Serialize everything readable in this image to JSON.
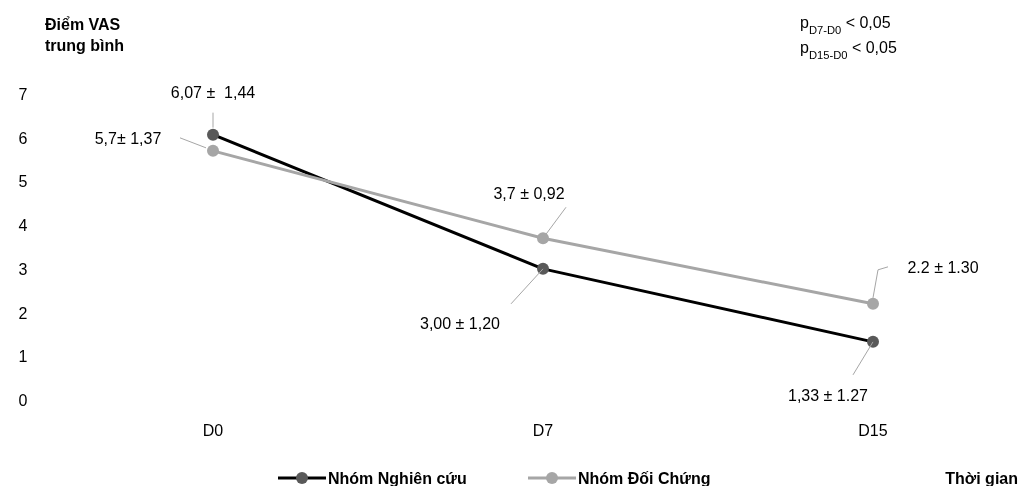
{
  "chart_data": {
    "type": "line",
    "ylabel": "Điểm VAS\ntrung bình",
    "xlabel": "Thời gian",
    "categories": [
      "D0",
      "D7",
      "D15"
    ],
    "ylim": [
      0,
      7
    ],
    "yticks": [
      0,
      1,
      2,
      3,
      4,
      5,
      6,
      7
    ],
    "grid": false,
    "legend": "bottom",
    "marker": "circle",
    "line_style": "solid",
    "series": [
      {
        "name": "Nhóm Nghiên cứu",
        "color": "#000000",
        "values": [
          6.07,
          3.0,
          1.33
        ],
        "value_labels": [
          "6,07 ±  1,44",
          "3,00 ± 1,20",
          "1,33 ± 1.27"
        ]
      },
      {
        "name": "Nhóm Đối Chứng",
        "color": "#a6a6a6",
        "values": [
          5.7,
          3.7,
          2.2
        ],
        "value_labels": [
          "5,7± 1,37",
          "3,7 ± 0,92",
          "2.2 ± 1.30"
        ]
      }
    ],
    "annotations": [
      "p$_{D7-D0}$ < 0,05",
      "p$_{D15-D0}$ < 0,05"
    ]
  }
}
